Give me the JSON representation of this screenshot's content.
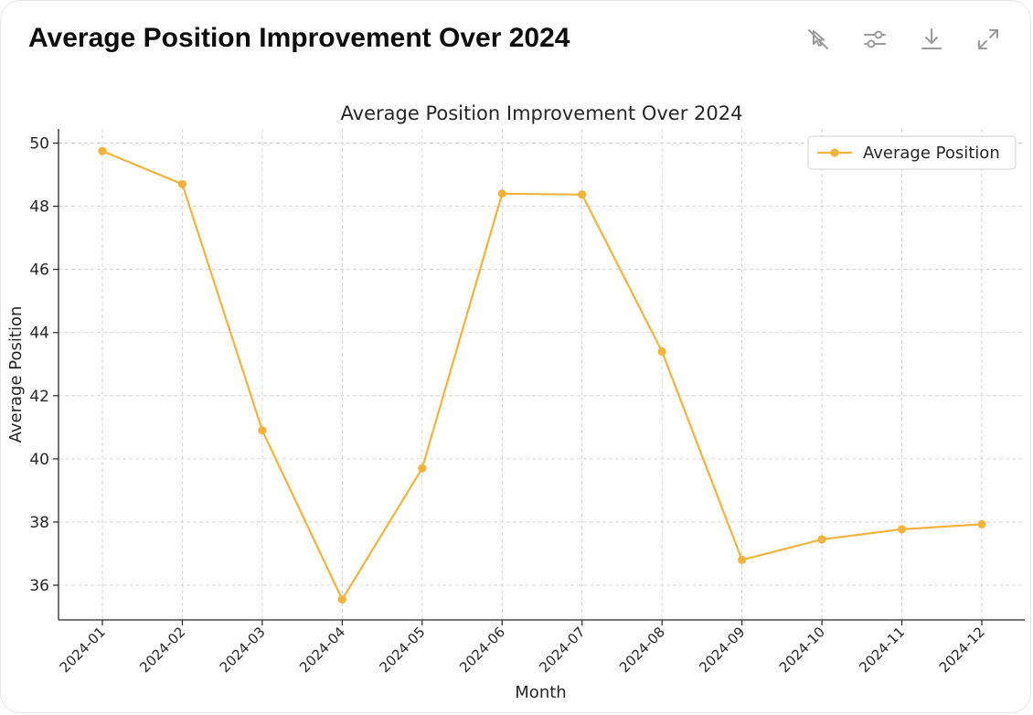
{
  "header": {
    "title": "Average Position Improvement Over 2024",
    "tools": [
      {
        "name": "interactive-toggle-icon"
      },
      {
        "name": "chart-settings-icon"
      },
      {
        "name": "download-icon"
      },
      {
        "name": "expand-icon"
      }
    ]
  },
  "colors": {
    "line": "#F2B33D",
    "grid": "#cccccc",
    "axis": "#262626",
    "icon": "#9a9a9a"
  },
  "chart_data": {
    "type": "line",
    "title": "Average Position Improvement Over 2024",
    "xlabel": "Month",
    "ylabel": "Average Position",
    "categories": [
      "2024-01",
      "2024-02",
      "2024-03",
      "2024-04",
      "2024-05",
      "2024-06",
      "2024-07",
      "2024-08",
      "2024-09",
      "2024-10",
      "2024-11",
      "2024-12"
    ],
    "series": [
      {
        "name": "Average Position",
        "values": [
          49.75,
          48.7,
          40.9,
          35.55,
          39.7,
          48.4,
          48.37,
          43.4,
          36.8,
          37.45,
          37.77,
          37.93
        ]
      }
    ],
    "yticks": [
      36,
      38,
      40,
      42,
      44,
      46,
      48,
      50
    ],
    "ylim": [
      34.9,
      50.45
    ],
    "grid": true,
    "legend": "top-right"
  }
}
